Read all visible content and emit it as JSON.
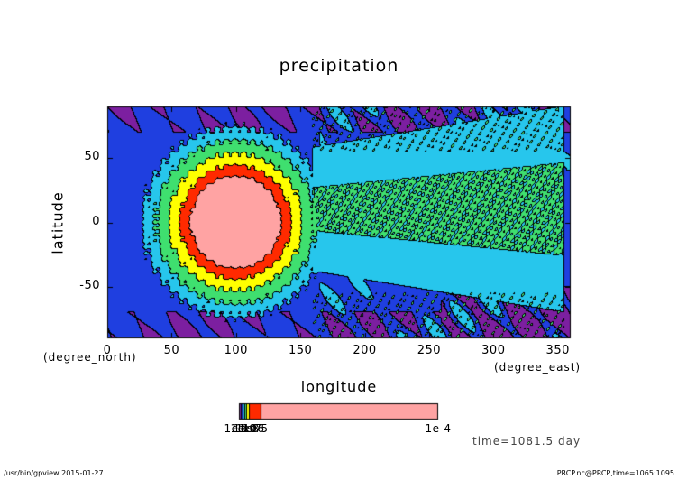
{
  "chart_data": {
    "type": "heatmap",
    "title": "precipitation",
    "xlabel": "longitude",
    "ylabel": "latitude",
    "x_unit": "(degree_east)",
    "y_unit": "(degree_north)",
    "xlim": [
      0,
      360
    ],
    "ylim": [
      -90,
      90
    ],
    "x_ticks": [
      0,
      50,
      100,
      150,
      200,
      250,
      300,
      350
    ],
    "y_ticks": [
      -50,
      0,
      50
    ],
    "grid": false,
    "features": [
      {
        "name": "peak",
        "lon": 100,
        "lat": 0,
        "radii_deg": [
          35,
          43,
          52,
          62,
          72,
          82
        ]
      },
      {
        "name": "plume",
        "lon_range": [
          160,
          355
        ],
        "lat_center": 10
      }
    ],
    "colorbar": {
      "tick_labels": [
        "1e-10",
        "1e-9",
        "1e-8",
        "1e-7",
        "1e-6",
        "1e-5",
        "1e-4"
      ],
      "colors": [
        "#7c1fa0",
        "#1f3fe0",
        "#27c6ec",
        "#3fdf6f",
        "#ffff00",
        "#ff2a00",
        "#ffa3a3"
      ]
    },
    "time_label": "time=1081.5 day",
    "footer_left": "/usr/bin/gpview  2015-01-27",
    "footer_right": "PRCP.nc@PRCP,time=1065:1095"
  }
}
